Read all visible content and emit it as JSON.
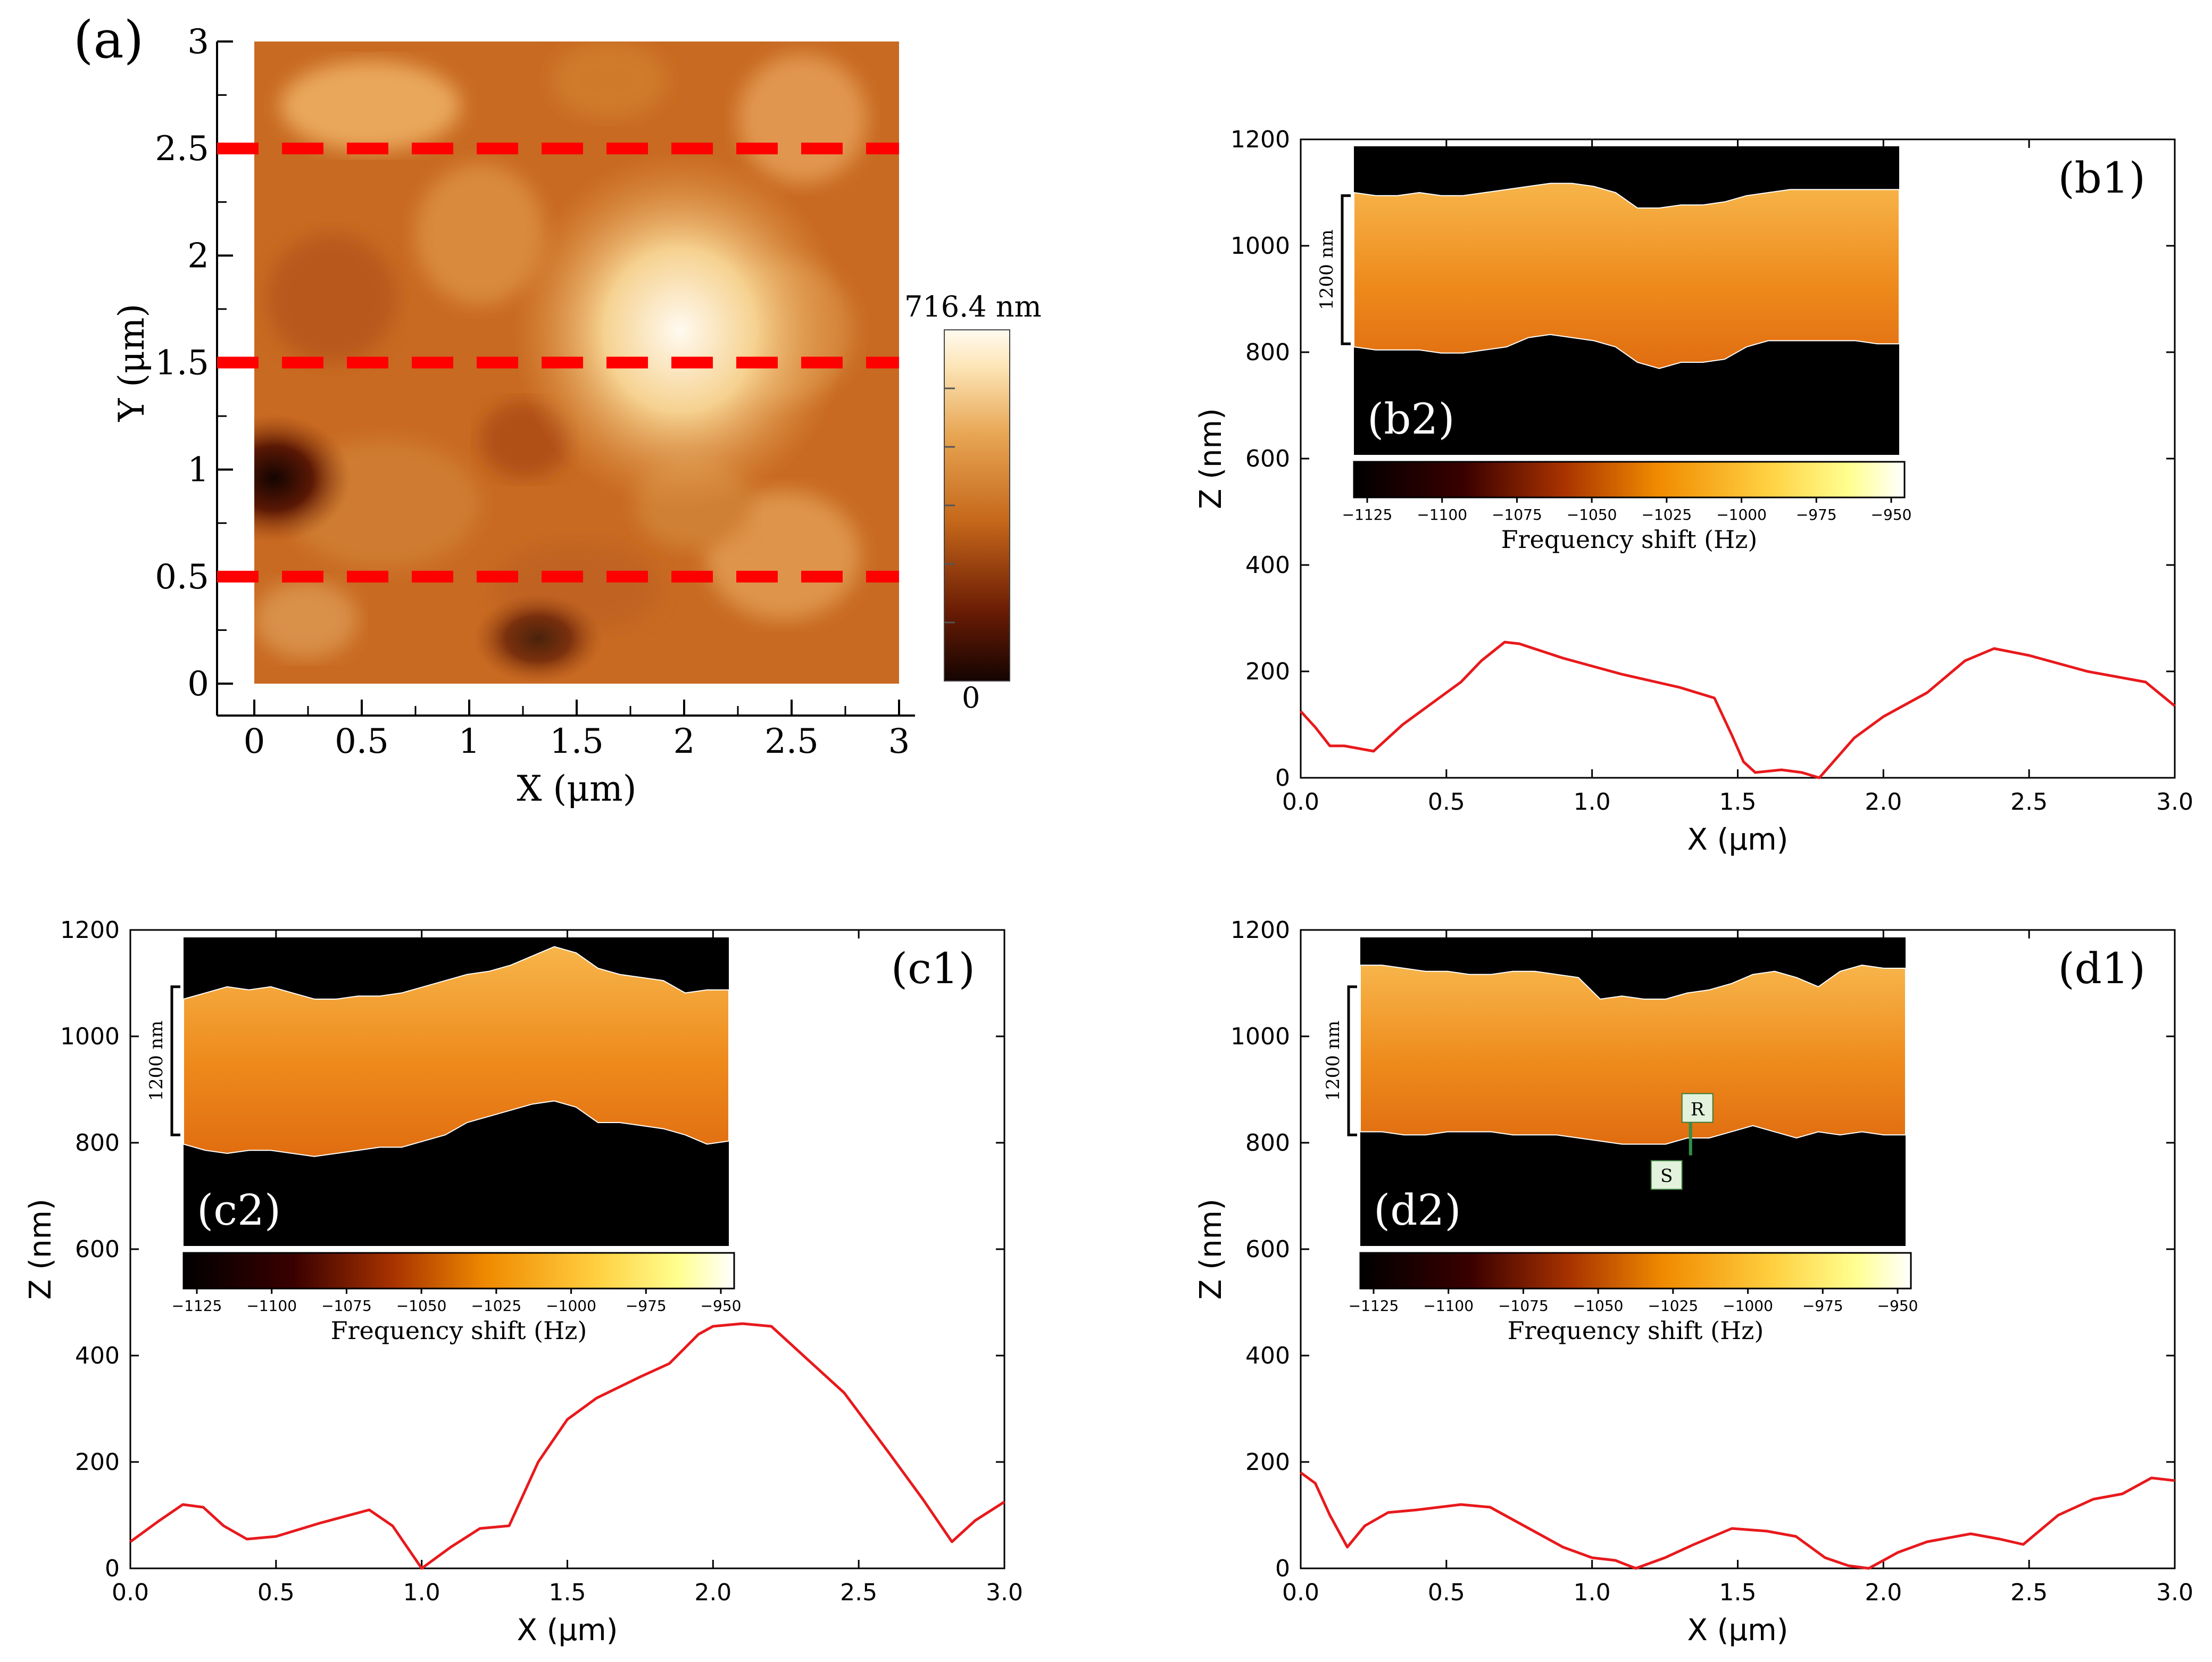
{
  "colors": {
    "profile_line": "#e8191c",
    "dash_line": "#ff0000",
    "afm_dark": "#140402",
    "afm_mid": "#c4661a",
    "afm_light": "#fffaf0",
    "label_box": "#e2f2dc",
    "label_box_border": "#3a7a3a",
    "rs_line": "#2f8f4a"
  },
  "panel_a": {
    "label": "(a)",
    "xlabel": "X (μm)",
    "ylabel": "Y (μm)",
    "xticks": [
      "0",
      "0.5",
      "1",
      "1.5",
      "2",
      "2.5",
      "3"
    ],
    "yticks": [
      "0",
      "0.5",
      "1",
      "1.5",
      "2",
      "2.5",
      "3"
    ],
    "colorbar_max": "716.4 nm",
    "colorbar_min": "0",
    "dashed_line_y_um": [
      0.5,
      1.5,
      2.5
    ]
  },
  "inset_common": {
    "scale_label": "1200 nm",
    "colorbar_label": "Frequency shift (Hz)",
    "colorbar_ticks": [
      "−1125",
      "−1100",
      "−1075",
      "−1050",
      "−1025",
      "−1000",
      "−975",
      "−950"
    ]
  },
  "panels": [
    {
      "label": "(b1)",
      "inset_label": "(b2)",
      "xlabel": "X (μm)",
      "ylabel": "Z (nm)"
    },
    {
      "label": "(c1)",
      "inset_label": "(c2)",
      "xlabel": "X (μm)",
      "ylabel": "Z (nm)"
    },
    {
      "label": "(d1)",
      "inset_label": "(d2)",
      "xlabel": "X (μm)",
      "ylabel": "Z (nm)",
      "markers": [
        "R",
        "S"
      ]
    }
  ],
  "chart_data": [
    {
      "type": "heatmap",
      "title": "(a)",
      "xlabel": "X (μm)",
      "ylabel": "Y (μm)",
      "xlim": [
        0,
        3
      ],
      "ylim": [
        0,
        3
      ],
      "colorbar_range_nm": [
        0,
        716.4
      ],
      "lines_y": [
        0.5,
        1.5,
        2.5
      ]
    },
    {
      "type": "line",
      "title": "(b1)",
      "xlabel": "X (μm)",
      "ylabel": "Z (nm)",
      "xlim": [
        0,
        3.0
      ],
      "ylim": [
        0,
        1200
      ],
      "xticks": [
        "0.0",
        "0.5",
        "1.0",
        "1.5",
        "2.0",
        "2.5",
        "3.0"
      ],
      "yticks": [
        "0",
        "200",
        "400",
        "600",
        "800",
        "1000",
        "1200"
      ],
      "x": [
        0.0,
        0.05,
        0.1,
        0.15,
        0.25,
        0.35,
        0.45,
        0.55,
        0.62,
        0.7,
        0.75,
        0.9,
        1.1,
        1.3,
        1.42,
        1.48,
        1.52,
        1.56,
        1.65,
        1.72,
        1.78,
        1.82,
        1.9,
        2.0,
        2.15,
        2.28,
        2.38,
        2.5,
        2.7,
        2.9,
        3.0
      ],
      "y": [
        125,
        95,
        60,
        60,
        50,
        100,
        140,
        180,
        220,
        255,
        252,
        225,
        195,
        170,
        150,
        80,
        30,
        10,
        15,
        10,
        0,
        25,
        75,
        115,
        160,
        220,
        243,
        230,
        200,
        180,
        135
      ]
    },
    {
      "type": "line",
      "title": "(c1)",
      "xlabel": "X (μm)",
      "ylabel": "Z (nm)",
      "xlim": [
        0,
        3.0
      ],
      "ylim": [
        0,
        1200
      ],
      "xticks": [
        "0.0",
        "0.5",
        "1.0",
        "1.5",
        "2.0",
        "2.5",
        "3.0"
      ],
      "yticks": [
        "0",
        "200",
        "400",
        "600",
        "800",
        "1000",
        "1200"
      ],
      "x": [
        0.0,
        0.1,
        0.18,
        0.25,
        0.32,
        0.4,
        0.5,
        0.65,
        0.82,
        0.9,
        1.0,
        1.1,
        1.2,
        1.3,
        1.4,
        1.5,
        1.6,
        1.75,
        1.85,
        1.95,
        2.0,
        2.1,
        2.2,
        2.3,
        2.45,
        2.6,
        2.72,
        2.82,
        2.9,
        3.0
      ],
      "y": [
        50,
        90,
        120,
        115,
        80,
        55,
        60,
        85,
        110,
        80,
        0,
        40,
        75,
        80,
        200,
        280,
        320,
        360,
        385,
        440,
        455,
        460,
        455,
        405,
        330,
        220,
        130,
        50,
        90,
        125
      ]
    },
    {
      "type": "line",
      "title": "(d1)",
      "xlabel": "X (μm)",
      "ylabel": "Z (nm)",
      "xlim": [
        0,
        3.0
      ],
      "ylim": [
        0,
        1200
      ],
      "xticks": [
        "0.0",
        "0.5",
        "1.0",
        "1.5",
        "2.0",
        "2.5",
        "3.0"
      ],
      "yticks": [
        "0",
        "200",
        "400",
        "600",
        "800",
        "1000",
        "1200"
      ],
      "x": [
        0.0,
        0.05,
        0.1,
        0.16,
        0.22,
        0.3,
        0.4,
        0.55,
        0.65,
        0.75,
        0.9,
        1.0,
        1.08,
        1.15,
        1.25,
        1.35,
        1.48,
        1.6,
        1.7,
        1.8,
        1.88,
        1.95,
        2.05,
        2.15,
        2.3,
        2.4,
        2.48,
        2.6,
        2.72,
        2.82,
        2.92,
        3.0
      ],
      "y": [
        180,
        160,
        100,
        40,
        80,
        105,
        110,
        120,
        115,
        85,
        40,
        20,
        15,
        0,
        20,
        45,
        75,
        70,
        60,
        20,
        5,
        0,
        30,
        50,
        65,
        55,
        45,
        100,
        130,
        140,
        170,
        165
      ]
    }
  ]
}
